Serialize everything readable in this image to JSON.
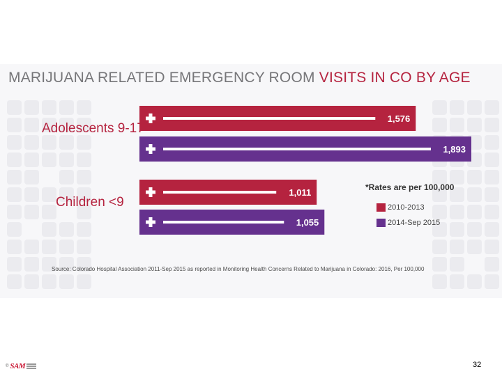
{
  "chart_data": {
    "type": "bar",
    "orientation": "horizontal",
    "title": "MARIJUANA RELATED EMERGENCY ROOM VISITS IN CO BY AGE",
    "title_parts": {
      "lead": "MARIJUANA RELATED EMERGENCY ROOM",
      "highlight": "VISITS IN CO BY AGE"
    },
    "categories": [
      "Adolescents 9-17",
      "Children <9"
    ],
    "series": [
      {
        "name": "2010-2013",
        "color": "#b5233f",
        "values": [
          1576,
          1011
        ],
        "labels": [
          "1,576",
          "1,011"
        ]
      },
      {
        "name": "2014-Sep 2015",
        "color": "#65318e",
        "values": [
          1893,
          1055
        ],
        "labels": [
          "1,893",
          "1,055"
        ]
      }
    ],
    "xlim": [
      0,
      1893
    ],
    "grid": false,
    "legend_position": "right",
    "note": "*Rates are per 100,000",
    "source": "Source: Colorado Hospital Association 2011-Sep 2015 as reported in Monitoring Health Concerns Related to Marijuana in Colorado: 2016, Per 100,000"
  },
  "colors": {
    "label_color": "#b5233f",
    "title_color": "#767679"
  },
  "footer": {
    "logo_text": "SAM",
    "logo_symbol": "©",
    "page_number": "32"
  }
}
